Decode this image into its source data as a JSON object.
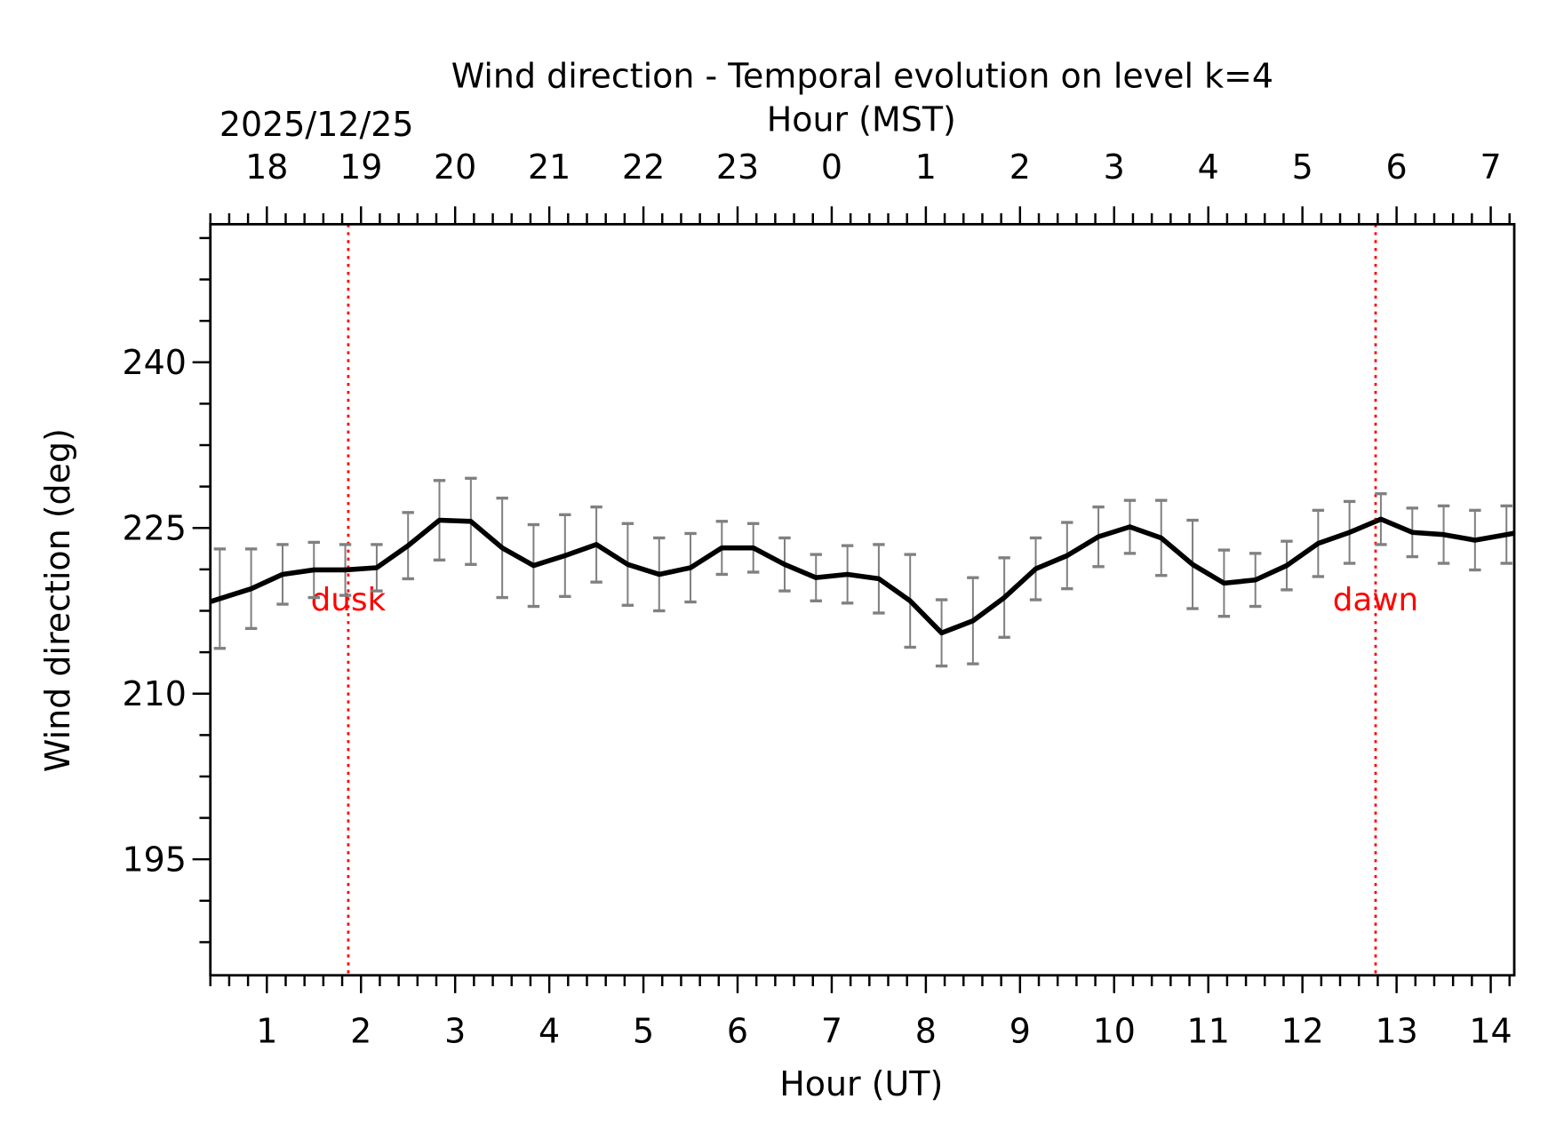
{
  "chart_data": {
    "type": "line",
    "title": "Wind direction - Temporal evolution on level k=4",
    "xlabel": "Hour (UT)",
    "ylabel": "Wind direction (deg)",
    "top_xlabel": "Hour (MST)",
    "date_label": "2025/12/25",
    "xlim": [
      0.4,
      14.25
    ],
    "ylim": [
      184.5,
      252.5
    ],
    "x_ticks": [
      1,
      2,
      3,
      4,
      5,
      6,
      7,
      8,
      9,
      10,
      11,
      12,
      13,
      14
    ],
    "x_tick_labels": [
      "1",
      "2",
      "3",
      "4",
      "5",
      "6",
      "7",
      "8",
      "9",
      "10",
      "11",
      "12",
      "13",
      "14"
    ],
    "top_tick_labels": [
      "18",
      "19",
      "20",
      "21",
      "22",
      "23",
      "0",
      "1",
      "2",
      "3",
      "4",
      "5",
      "6",
      "7"
    ],
    "y_ticks": [
      195,
      210,
      225,
      240
    ],
    "y_tick_labels": [
      "195",
      "210",
      "225",
      "240"
    ],
    "grid": false,
    "line_color": "#000000",
    "errorbar_color": "#808080",
    "marker_color": "#ff0000",
    "x": [
      0.5,
      0.833,
      1.167,
      1.5,
      1.833,
      2.167,
      2.5,
      2.833,
      3.167,
      3.5,
      3.833,
      4.167,
      4.5,
      4.833,
      5.167,
      5.5,
      5.833,
      6.167,
      6.5,
      6.833,
      7.167,
      7.5,
      7.833,
      8.167,
      8.5,
      8.833,
      9.167,
      9.5,
      9.833,
      10.167,
      10.5,
      10.833,
      11.167,
      11.5,
      11.833,
      12.167,
      12.5,
      12.833,
      13.167,
      13.5,
      13.833,
      14.167
    ],
    "y": [
      218.6,
      219.5,
      220.8,
      221.2,
      221.2,
      221.4,
      223.4,
      225.7,
      225.6,
      223.2,
      221.6,
      222.5,
      223.5,
      221.7,
      220.8,
      221.4,
      223.2,
      223.2,
      221.7,
      220.5,
      220.8,
      220.4,
      218.4,
      215.5,
      216.6,
      218.7,
      221.3,
      222.5,
      224.2,
      225.1,
      224.1,
      221.7,
      220.0,
      220.3,
      221.6,
      223.6,
      224.6,
      225.8,
      224.6,
      224.4,
      223.9,
      224.4
    ],
    "error": [
      4.5,
      3.6,
      2.7,
      2.5,
      2.3,
      2.1,
      3.0,
      3.6,
      3.9,
      4.5,
      3.7,
      3.7,
      3.4,
      3.7,
      3.3,
      3.1,
      2.4,
      2.2,
      2.4,
      2.1,
      2.6,
      3.1,
      4.2,
      3.0,
      3.9,
      3.6,
      2.8,
      3.0,
      2.7,
      2.4,
      3.4,
      4.0,
      3.0,
      2.4,
      2.2,
      3.0,
      2.8,
      2.3,
      2.2,
      2.6,
      2.7,
      2.6
    ],
    "vlines": [
      {
        "x": 1.865,
        "label": "dusk"
      },
      {
        "x": 12.777,
        "label": "dawn"
      }
    ]
  }
}
